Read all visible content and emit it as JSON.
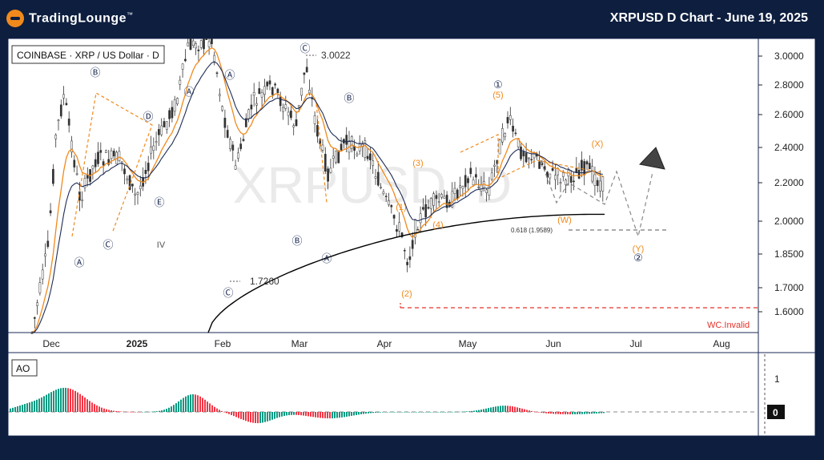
{
  "header": {
    "logo_text": "TradingLounge",
    "logo_tm": "™",
    "title": "XRPUSD D Chart - June 19, 2025"
  },
  "chart_data": {
    "type": "candlestick",
    "symbol_label": "COINBASE · XRP / US Dollar · D",
    "watermark": "XRPUSD, D",
    "y_axis_ticks": [
      "3.0000",
      "2.8000",
      "2.6000",
      "2.4000",
      "2.2000",
      "2.0000",
      "1.8500",
      "1.7000",
      "1.6000"
    ],
    "x_axis_ticks": [
      "Dec",
      "2025",
      "Feb",
      "Mar",
      "Apr",
      "May",
      "Jun",
      "Jul",
      "Aug"
    ],
    "price_annotations": [
      {
        "text": "3.0022",
        "value": 3.0022
      },
      {
        "text": "1.7260",
        "value": 1.726
      }
    ],
    "fib_label": "0.618 (1.9589)",
    "invalidation_label": "WC.Invalid",
    "wave_labels_black": [
      "Ⓑ",
      "Ⓓ",
      "Ⓐ",
      "Ⓒ",
      "Ⓔ",
      "Ⓐ",
      "Ⓒ",
      "Ⓐ",
      "Ⓒ",
      "Ⓑ",
      "Ⓑ",
      "Ⓐ",
      "①",
      "②",
      "IV"
    ],
    "wave_labels_orange": [
      "(3)",
      "(1)",
      "(4)",
      "(2)",
      "(5)",
      "(W)",
      "(X)",
      "(Y)"
    ],
    "indicator": {
      "name": "AO",
      "y_ticks": [
        "1",
        "0"
      ]
    },
    "colors": {
      "up": "#089981",
      "down": "#f23645",
      "orange": "#f08a1c",
      "invalid": "#e5332a",
      "ma_black": "#000000",
      "ma_navy": "#1f2d55",
      "ma_orange": "#f08a1c"
    }
  }
}
